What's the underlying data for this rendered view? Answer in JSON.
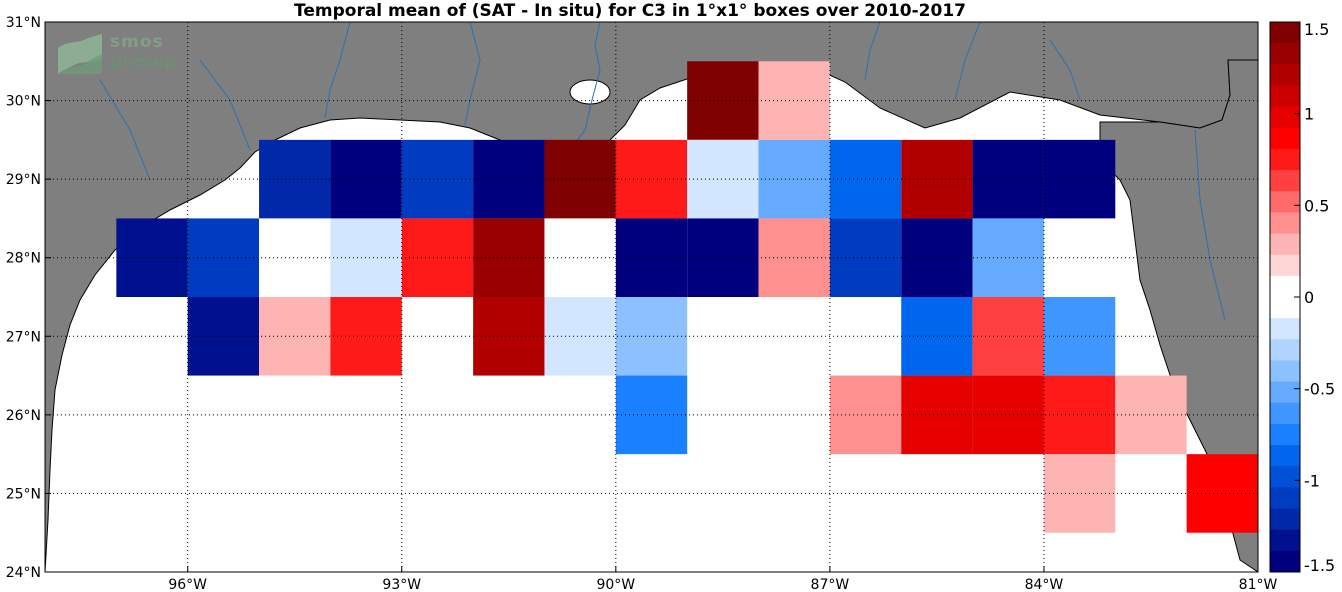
{
  "title": "Temporal mean of (SAT - In situ) for C3 in 1°x1° boxes over 2010-2017",
  "logo": {
    "line1": "smos",
    "line2": "pi-mep"
  },
  "colors": {
    "land": "#7f7f7f",
    "ocean": "#ffffff",
    "rivers": "#2f6fb0",
    "colormap_neg": [
      "#00007f",
      "#00108f",
      "#0028a8",
      "#003cc0",
      "#0050d8",
      "#0066ee",
      "#1a80ff",
      "#4096ff",
      "#66aaff",
      "#8cc0ff",
      "#b0d4ff",
      "#d2e6ff",
      "#ffffff"
    ],
    "colormap_pos": [
      "#ffffff",
      "#ffd6d6",
      "#ffb4b4",
      "#ff9090",
      "#ff6a6a",
      "#ff4040",
      "#ff1a1a",
      "#ff0000",
      "#e60000",
      "#cc0000",
      "#b20000",
      "#990000",
      "#7f0000"
    ]
  },
  "chart_data": {
    "type": "heatmap",
    "title": "Temporal mean of (SAT - In situ) for C3 in 1°x1° boxes over 2010-2017",
    "xlim": [
      -98,
      -81
    ],
    "ylim": [
      24,
      31
    ],
    "xticks": [
      -96,
      -93,
      -90,
      -87,
      -84,
      -81
    ],
    "xticklabels": [
      "96°W",
      "93°W",
      "90°W",
      "87°W",
      "84°W",
      "81°W"
    ],
    "yticks": [
      24,
      25,
      26,
      27,
      28,
      29,
      30,
      31
    ],
    "yticklabels": [
      "24°N",
      "25°N",
      "26°N",
      "27°N",
      "28°N",
      "29°N",
      "30°N",
      "31°N"
    ],
    "grid": true,
    "colorbar": {
      "range": [
        -1.5,
        1.5
      ],
      "ticks": [
        1.5,
        1,
        0.5,
        0,
        -0.5,
        -1,
        -1.5
      ],
      "ticklabels": [
        "1.5",
        "1",
        "0.5",
        "0",
        "-0.5",
        "-1",
        "-1.5"
      ],
      "position": "right"
    },
    "cells": [
      {
        "lon": -88.5,
        "lat": 30,
        "value": 1.45
      },
      {
        "lon": -87.5,
        "lat": 30,
        "value": 0.2
      },
      {
        "lon": -94.5,
        "lat": 29,
        "value": -1.3
      },
      {
        "lon": -93.5,
        "lat": 29,
        "value": -1.45
      },
      {
        "lon": -92.5,
        "lat": 29,
        "value": -1.1
      },
      {
        "lon": -91.5,
        "lat": 29,
        "value": -1.45
      },
      {
        "lon": -90.5,
        "lat": 29,
        "value": 1.45
      },
      {
        "lon": -89.5,
        "lat": 29,
        "value": 0.8
      },
      {
        "lon": -88.5,
        "lat": 29,
        "value": -0.1
      },
      {
        "lon": -87.5,
        "lat": 29,
        "value": -0.45
      },
      {
        "lon": -86.5,
        "lat": 29,
        "value": -0.85
      },
      {
        "lon": -85.5,
        "lat": 29,
        "value": 1.25
      },
      {
        "lon": -84.5,
        "lat": 29,
        "value": -1.45
      },
      {
        "lon": -83.5,
        "lat": 29,
        "value": -1.45
      },
      {
        "lon": -96.5,
        "lat": 28,
        "value": -1.35
      },
      {
        "lon": -95.5,
        "lat": 28,
        "value": -1.15
      },
      {
        "lon": -94.5,
        "lat": 28,
        "value": 0
      },
      {
        "lon": -93.5,
        "lat": 28,
        "value": -0.1
      },
      {
        "lon": -92.5,
        "lat": 28,
        "value": 0.75
      },
      {
        "lon": -91.5,
        "lat": 28,
        "value": 1.4
      },
      {
        "lon": -90.5,
        "lat": 28,
        "value": 0
      },
      {
        "lon": -89.5,
        "lat": 28,
        "value": -1.45
      },
      {
        "lon": -88.5,
        "lat": 28,
        "value": -1.45
      },
      {
        "lon": -87.5,
        "lat": 28,
        "value": 0.4
      },
      {
        "lon": -86.5,
        "lat": 28,
        "value": -1.1
      },
      {
        "lon": -85.5,
        "lat": 28,
        "value": -1.45
      },
      {
        "lon": -84.5,
        "lat": 28,
        "value": -0.55
      },
      {
        "lon": -83.5,
        "lat": 28,
        "value": 0
      },
      {
        "lon": -95.5,
        "lat": 27,
        "value": -1.35
      },
      {
        "lon": -94.5,
        "lat": 27,
        "value": 0.2
      },
      {
        "lon": -93.5,
        "lat": 27,
        "value": 0.75
      },
      {
        "lon": -91.5,
        "lat": 27,
        "value": 1.25
      },
      {
        "lon": -90.5,
        "lat": 27,
        "value": -0.1
      },
      {
        "lon": -89.5,
        "lat": 27,
        "value": -0.4
      },
      {
        "lon": -85.5,
        "lat": 27,
        "value": -0.85
      },
      {
        "lon": -84.5,
        "lat": 27,
        "value": 0.65
      },
      {
        "lon": -83.5,
        "lat": 27,
        "value": -0.65
      },
      {
        "lon": -89.5,
        "lat": 26,
        "value": -0.75
      },
      {
        "lon": -86.5,
        "lat": 26,
        "value": 0.35
      },
      {
        "lon": -85.5,
        "lat": 26,
        "value": 0.95
      },
      {
        "lon": -84.5,
        "lat": 26,
        "value": 1.05
      },
      {
        "lon": -83.5,
        "lat": 26,
        "value": 0.8
      },
      {
        "lon": -82.5,
        "lat": 26,
        "value": 0.2
      },
      {
        "lon": -83.5,
        "lat": 25,
        "value": 0.2
      },
      {
        "lon": -81.5,
        "lat": 25,
        "value": 0.9
      }
    ]
  }
}
